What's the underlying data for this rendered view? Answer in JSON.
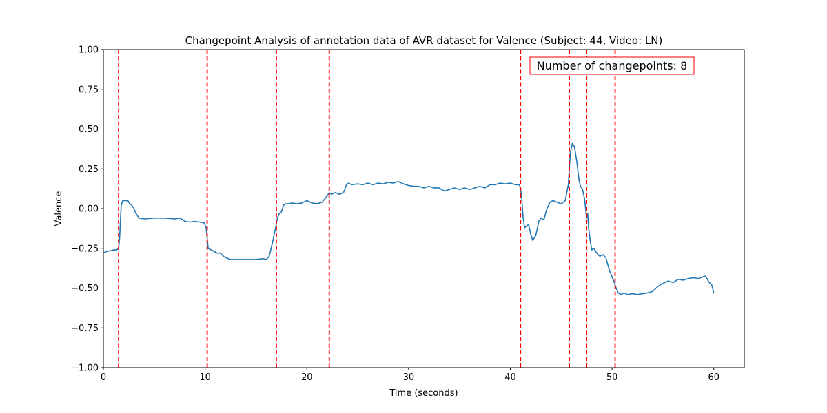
{
  "chart_data": {
    "type": "line",
    "title": "Changepoint Analysis of annotation data of AVR dataset for Valence (Subject: 44, Video: LN)",
    "xlabel": "Time (seconds)",
    "ylabel": "Valence",
    "xlim": [
      0,
      63
    ],
    "ylim": [
      -1.0,
      1.0
    ],
    "x_ticks": [
      0,
      10,
      20,
      30,
      40,
      50,
      60
    ],
    "x_tick_labels": [
      "0",
      "10",
      "20",
      "30",
      "40",
      "50",
      "60"
    ],
    "y_ticks": [
      1.0,
      0.75,
      0.5,
      0.25,
      0.0,
      -0.25,
      -0.5,
      -0.75,
      -1.0
    ],
    "y_tick_labels": [
      "1.00",
      "0.75",
      "0.50",
      "0.25",
      "0.00",
      "−0.25",
      "−0.50",
      "−0.75",
      "−1.00"
    ],
    "grid": false,
    "series": [
      {
        "color": "#1f77b4",
        "x": [
          0,
          0.3,
          0.7,
          1.0,
          1.3,
          1.5,
          1.6,
          1.75,
          1.9,
          2.2,
          2.4,
          2.6,
          2.8,
          3.0,
          3.2,
          3.5,
          4.0,
          5.0,
          6.0,
          7.0,
          7.5,
          7.8,
          8.0,
          8.5,
          9.0,
          9.5,
          9.9,
          10.1,
          10.3,
          10.6,
          10.9,
          11.2,
          11.5,
          11.8,
          12.1,
          12.5,
          13.0,
          14.0,
          15.0,
          15.7,
          16.0,
          16.3,
          16.6,
          16.9,
          17.1,
          17.3,
          17.5,
          17.7,
          17.9,
          18.2,
          18.6,
          19.0,
          19.5,
          20.0,
          20.5,
          21.0,
          21.5,
          22.0,
          22.2,
          22.4,
          22.8,
          23.2,
          23.6,
          23.9,
          24.1,
          24.4,
          25.0,
          25.5,
          26.0,
          26.5,
          27.0,
          27.5,
          28.0,
          28.5,
          29.0,
          29.5,
          30.0,
          30.5,
          31.0,
          31.5,
          32.0,
          32.5,
          33.0,
          33.5,
          34.0,
          34.5,
          35.0,
          35.5,
          36.0,
          36.5,
          37.0,
          37.5,
          38.0,
          38.5,
          39.0,
          39.5,
          40.0,
          40.5,
          40.9,
          41.1,
          41.25,
          41.4,
          41.6,
          41.8,
          42.0,
          42.2,
          42.5,
          42.8,
          43.0,
          43.3,
          43.6,
          43.9,
          44.2,
          44.6,
          45.0,
          45.4,
          45.7,
          45.9,
          46.1,
          46.3,
          46.55,
          46.75,
          46.9,
          47.1,
          47.3,
          47.5,
          47.6,
          47.7,
          47.85,
          48.0,
          48.2,
          48.5,
          48.8,
          49.1,
          49.4,
          49.7,
          50.0,
          50.2,
          50.4,
          50.6,
          50.9,
          51.2,
          51.5,
          52.0,
          52.5,
          53.0,
          53.5,
          54.0,
          54.5,
          55.0,
          55.2,
          55.5,
          56.0,
          56.5,
          57.0,
          57.5,
          58.0,
          58.5,
          58.9,
          59.2,
          59.5,
          59.8,
          60.0
        ],
        "values": [
          -0.28,
          -0.27,
          -0.265,
          -0.26,
          -0.26,
          -0.25,
          -0.18,
          0.02,
          0.05,
          0.05,
          0.05,
          0.03,
          0.02,
          0.0,
          -0.03,
          -0.06,
          -0.065,
          -0.06,
          -0.06,
          -0.065,
          -0.06,
          -0.07,
          -0.08,
          -0.085,
          -0.08,
          -0.085,
          -0.09,
          -0.12,
          -0.25,
          -0.26,
          -0.27,
          -0.28,
          -0.28,
          -0.3,
          -0.31,
          -0.32,
          -0.32,
          -0.32,
          -0.32,
          -0.315,
          -0.32,
          -0.3,
          -0.22,
          -0.13,
          -0.06,
          -0.03,
          -0.02,
          0.02,
          0.03,
          0.03,
          0.035,
          0.03,
          0.035,
          0.05,
          0.035,
          0.03,
          0.04,
          0.08,
          0.1,
          0.09,
          0.1,
          0.09,
          0.1,
          0.15,
          0.16,
          0.15,
          0.155,
          0.15,
          0.16,
          0.15,
          0.16,
          0.155,
          0.165,
          0.16,
          0.17,
          0.155,
          0.145,
          0.14,
          0.14,
          0.13,
          0.14,
          0.13,
          0.13,
          0.11,
          0.12,
          0.13,
          0.12,
          0.13,
          0.12,
          0.13,
          0.14,
          0.13,
          0.15,
          0.15,
          0.16,
          0.155,
          0.16,
          0.15,
          0.15,
          0.09,
          -0.05,
          -0.12,
          -0.11,
          -0.1,
          -0.16,
          -0.2,
          -0.17,
          -0.08,
          -0.06,
          -0.07,
          0.0,
          0.04,
          0.05,
          0.04,
          0.03,
          0.05,
          0.15,
          0.35,
          0.41,
          0.39,
          0.29,
          0.18,
          0.14,
          0.12,
          0.06,
          -0.06,
          -0.03,
          -0.12,
          -0.2,
          -0.26,
          -0.25,
          -0.28,
          -0.3,
          -0.29,
          -0.31,
          -0.38,
          -0.43,
          -0.46,
          -0.5,
          -0.53,
          -0.54,
          -0.53,
          -0.54,
          -0.535,
          -0.54,
          -0.535,
          -0.53,
          -0.52,
          -0.49,
          -0.47,
          -0.465,
          -0.455,
          -0.465,
          -0.445,
          -0.45,
          -0.44,
          -0.435,
          -0.44,
          -0.43,
          -0.425,
          -0.46,
          -0.48,
          -0.53
        ]
      }
    ],
    "changepoints": [
      1.5,
      10.2,
      17.0,
      22.2,
      41.0,
      45.8,
      47.5,
      50.3
    ],
    "changepoint_color": "#ff0000",
    "annotation": "Number of changepoints: 8"
  }
}
